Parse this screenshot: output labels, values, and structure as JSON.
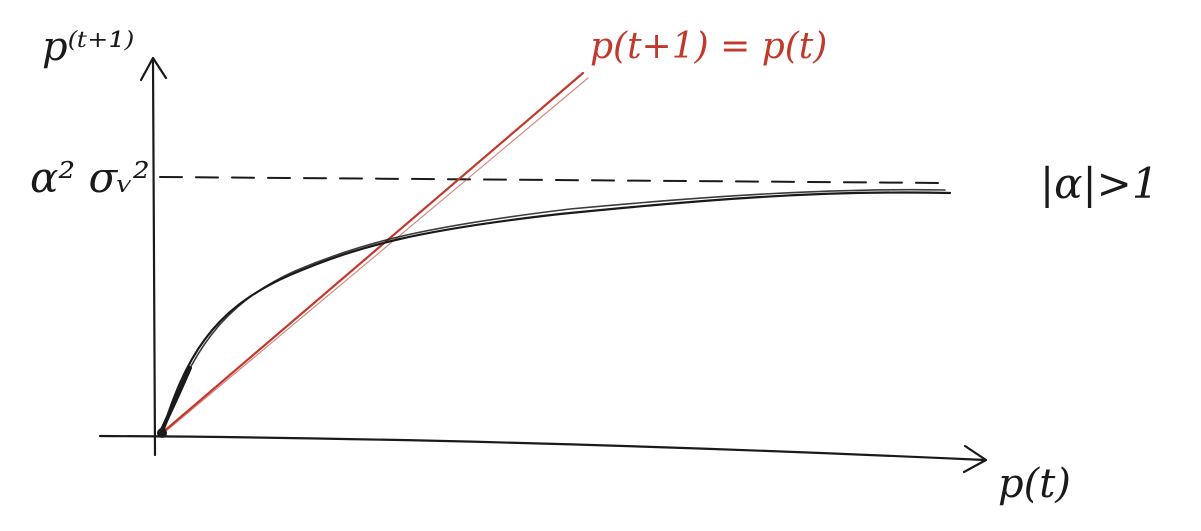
{
  "labels": {
    "y_axis": "p⁽ᵗ⁺¹⁾",
    "x_axis": "p(t)",
    "asymptote": "α² σᵥ²",
    "identity_line": "p(t+1) = p(t)",
    "condition": "|α|>1"
  },
  "colors": {
    "ink": "#1a1a1a",
    "identity_line": "#c0392b",
    "background": "#ffffff"
  }
}
